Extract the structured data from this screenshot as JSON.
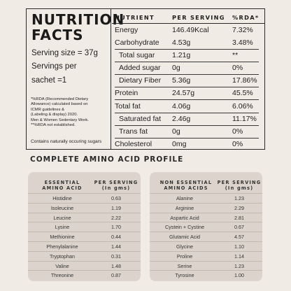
{
  "nutrition_facts": {
    "title_line1": "NUTRITION",
    "title_line2": "FACTS",
    "serving_size": "Serving size = 37g",
    "servings_line1": "Servings per",
    "servings_line2": "sachet =1",
    "rda_note_1": "*%RDA (Recommended Dietary",
    "rda_note_2": "Allowance) calculated based on",
    "rda_note_3": "ICMR guidelines &",
    "rda_note_4": "(Labeling & display) 2020.",
    "rda_note_5": "Men & Women Sedentary Work.",
    "rda_note_6": "**%RDA not established.",
    "sugars_note": "Contains naturally occuring sugars",
    "columns": {
      "nutrient": "NUTRIENT",
      "per_serving": "PER SERVING",
      "rda": "%RDA*"
    },
    "rows": [
      {
        "name": "Energy",
        "value": "146.49Kcal",
        "rda": "7.32%"
      },
      {
        "name": "Carbohydrate",
        "value": "4.53g",
        "rda": "3.48%"
      },
      {
        "name": "Total sugar",
        "value": "1.21g",
        "rda": "**"
      },
      {
        "name": "Added sugar",
        "value": "0g",
        "rda": "0%"
      },
      {
        "name": "Dietary Fiber",
        "value": "5.36g",
        "rda": "17.86%"
      },
      {
        "name": "Protein",
        "value": "24.57g",
        "rda": "45.5%"
      },
      {
        "name": "Total fat",
        "value": "4.06g",
        "rda": "6.06%"
      },
      {
        "name": "Saturated fat",
        "value": "2.46g",
        "rda": "11.17%"
      },
      {
        "name": "Trans fat",
        "value": "0g",
        "rda": "0%"
      },
      {
        "name": "Cholesterol",
        "value": "0mg",
        "rda": "0%"
      }
    ]
  },
  "amino_acid_profile": {
    "title": "COMPLETE AMINO ACID PROFILE",
    "essential": {
      "head_name_1": "ESSENTIAL",
      "head_name_2": "AMINO ACID",
      "head_val_1": "PER SERVING",
      "head_val_2": "(In gms)",
      "rows": [
        {
          "name": "Histidine",
          "value": "0.63"
        },
        {
          "name": "Isoleucine",
          "value": "1.19"
        },
        {
          "name": "Leucine",
          "value": "2.22"
        },
        {
          "name": "Lysine",
          "value": "1.70"
        },
        {
          "name": "Methionine",
          "value": "0.44"
        },
        {
          "name": "Phenylalanine",
          "value": "1.44"
        },
        {
          "name": "Tryptophan",
          "value": "0.31"
        },
        {
          "name": "Valine",
          "value": "1.48"
        },
        {
          "name": "Threonine",
          "value": "0.87"
        }
      ]
    },
    "non_essential": {
      "head_name_1": "NON ESSENTIAL",
      "head_name_2": "AMINO ACIDS",
      "head_val_1": "PER SERVING",
      "head_val_2": "(In gms)",
      "rows": [
        {
          "name": "Alanine",
          "value": "1.23"
        },
        {
          "name": "Arginine",
          "value": "2.29"
        },
        {
          "name": "Aspartic Acid",
          "value": "2.81"
        },
        {
          "name": "Cystein + Cystine",
          "value": "0.67"
        },
        {
          "name": "Glutamic Acid",
          "value": "4.57"
        },
        {
          "name": "Glycine",
          "value": "1.10"
        },
        {
          "name": "Proline",
          "value": "1.14"
        },
        {
          "name": "Serine",
          "value": "1.23"
        },
        {
          "name": "Tyrosine",
          "value": "1.00"
        }
      ]
    }
  }
}
